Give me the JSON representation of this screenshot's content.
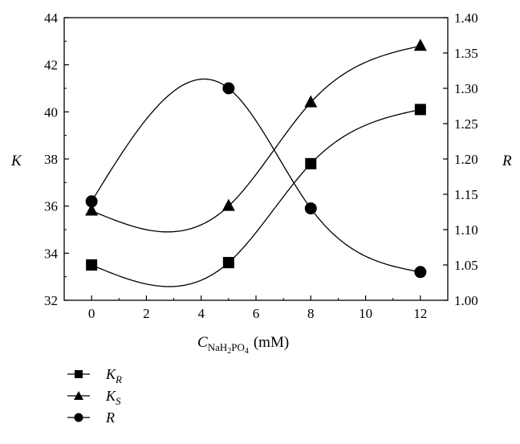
{
  "chart_data": {
    "type": "line",
    "x_axis": {
      "label_main": "C",
      "label_sub": "NaH",
      "label_sub2": "2",
      "label_sub3": "PO",
      "label_sub4": "4",
      "label_unit": "(mM)",
      "range": [
        -1,
        13
      ],
      "ticks": [
        0,
        2,
        4,
        6,
        8,
        10,
        12
      ]
    },
    "y_axis_left": {
      "label": "K",
      "range": [
        32,
        44
      ],
      "ticks": [
        32,
        34,
        36,
        38,
        40,
        42,
        44
      ]
    },
    "y_axis_right": {
      "label": "R",
      "range": [
        1.0,
        1.4
      ],
      "ticks": [
        "1.00",
        "1.05",
        "1.10",
        "1.15",
        "1.20",
        "1.25",
        "1.30",
        "1.35",
        "1.40"
      ]
    },
    "series": [
      {
        "name": "K",
        "name_sub": "R",
        "marker": "square",
        "axis": "left",
        "x": [
          0,
          5,
          8,
          12
        ],
        "values": [
          33.5,
          33.6,
          37.8,
          40.1
        ]
      },
      {
        "name": "K",
        "name_sub": "S",
        "marker": "triangle",
        "axis": "left",
        "x": [
          0,
          5,
          8,
          12
        ],
        "values": [
          35.8,
          36.0,
          40.4,
          42.8
        ]
      },
      {
        "name": "R",
        "name_sub": "",
        "marker": "circle",
        "axis": "right",
        "x": [
          0,
          5,
          8,
          12
        ],
        "values": [
          1.14,
          1.3,
          1.13,
          1.04
        ]
      }
    ],
    "legend_position": "bottom-left",
    "grid": false
  }
}
